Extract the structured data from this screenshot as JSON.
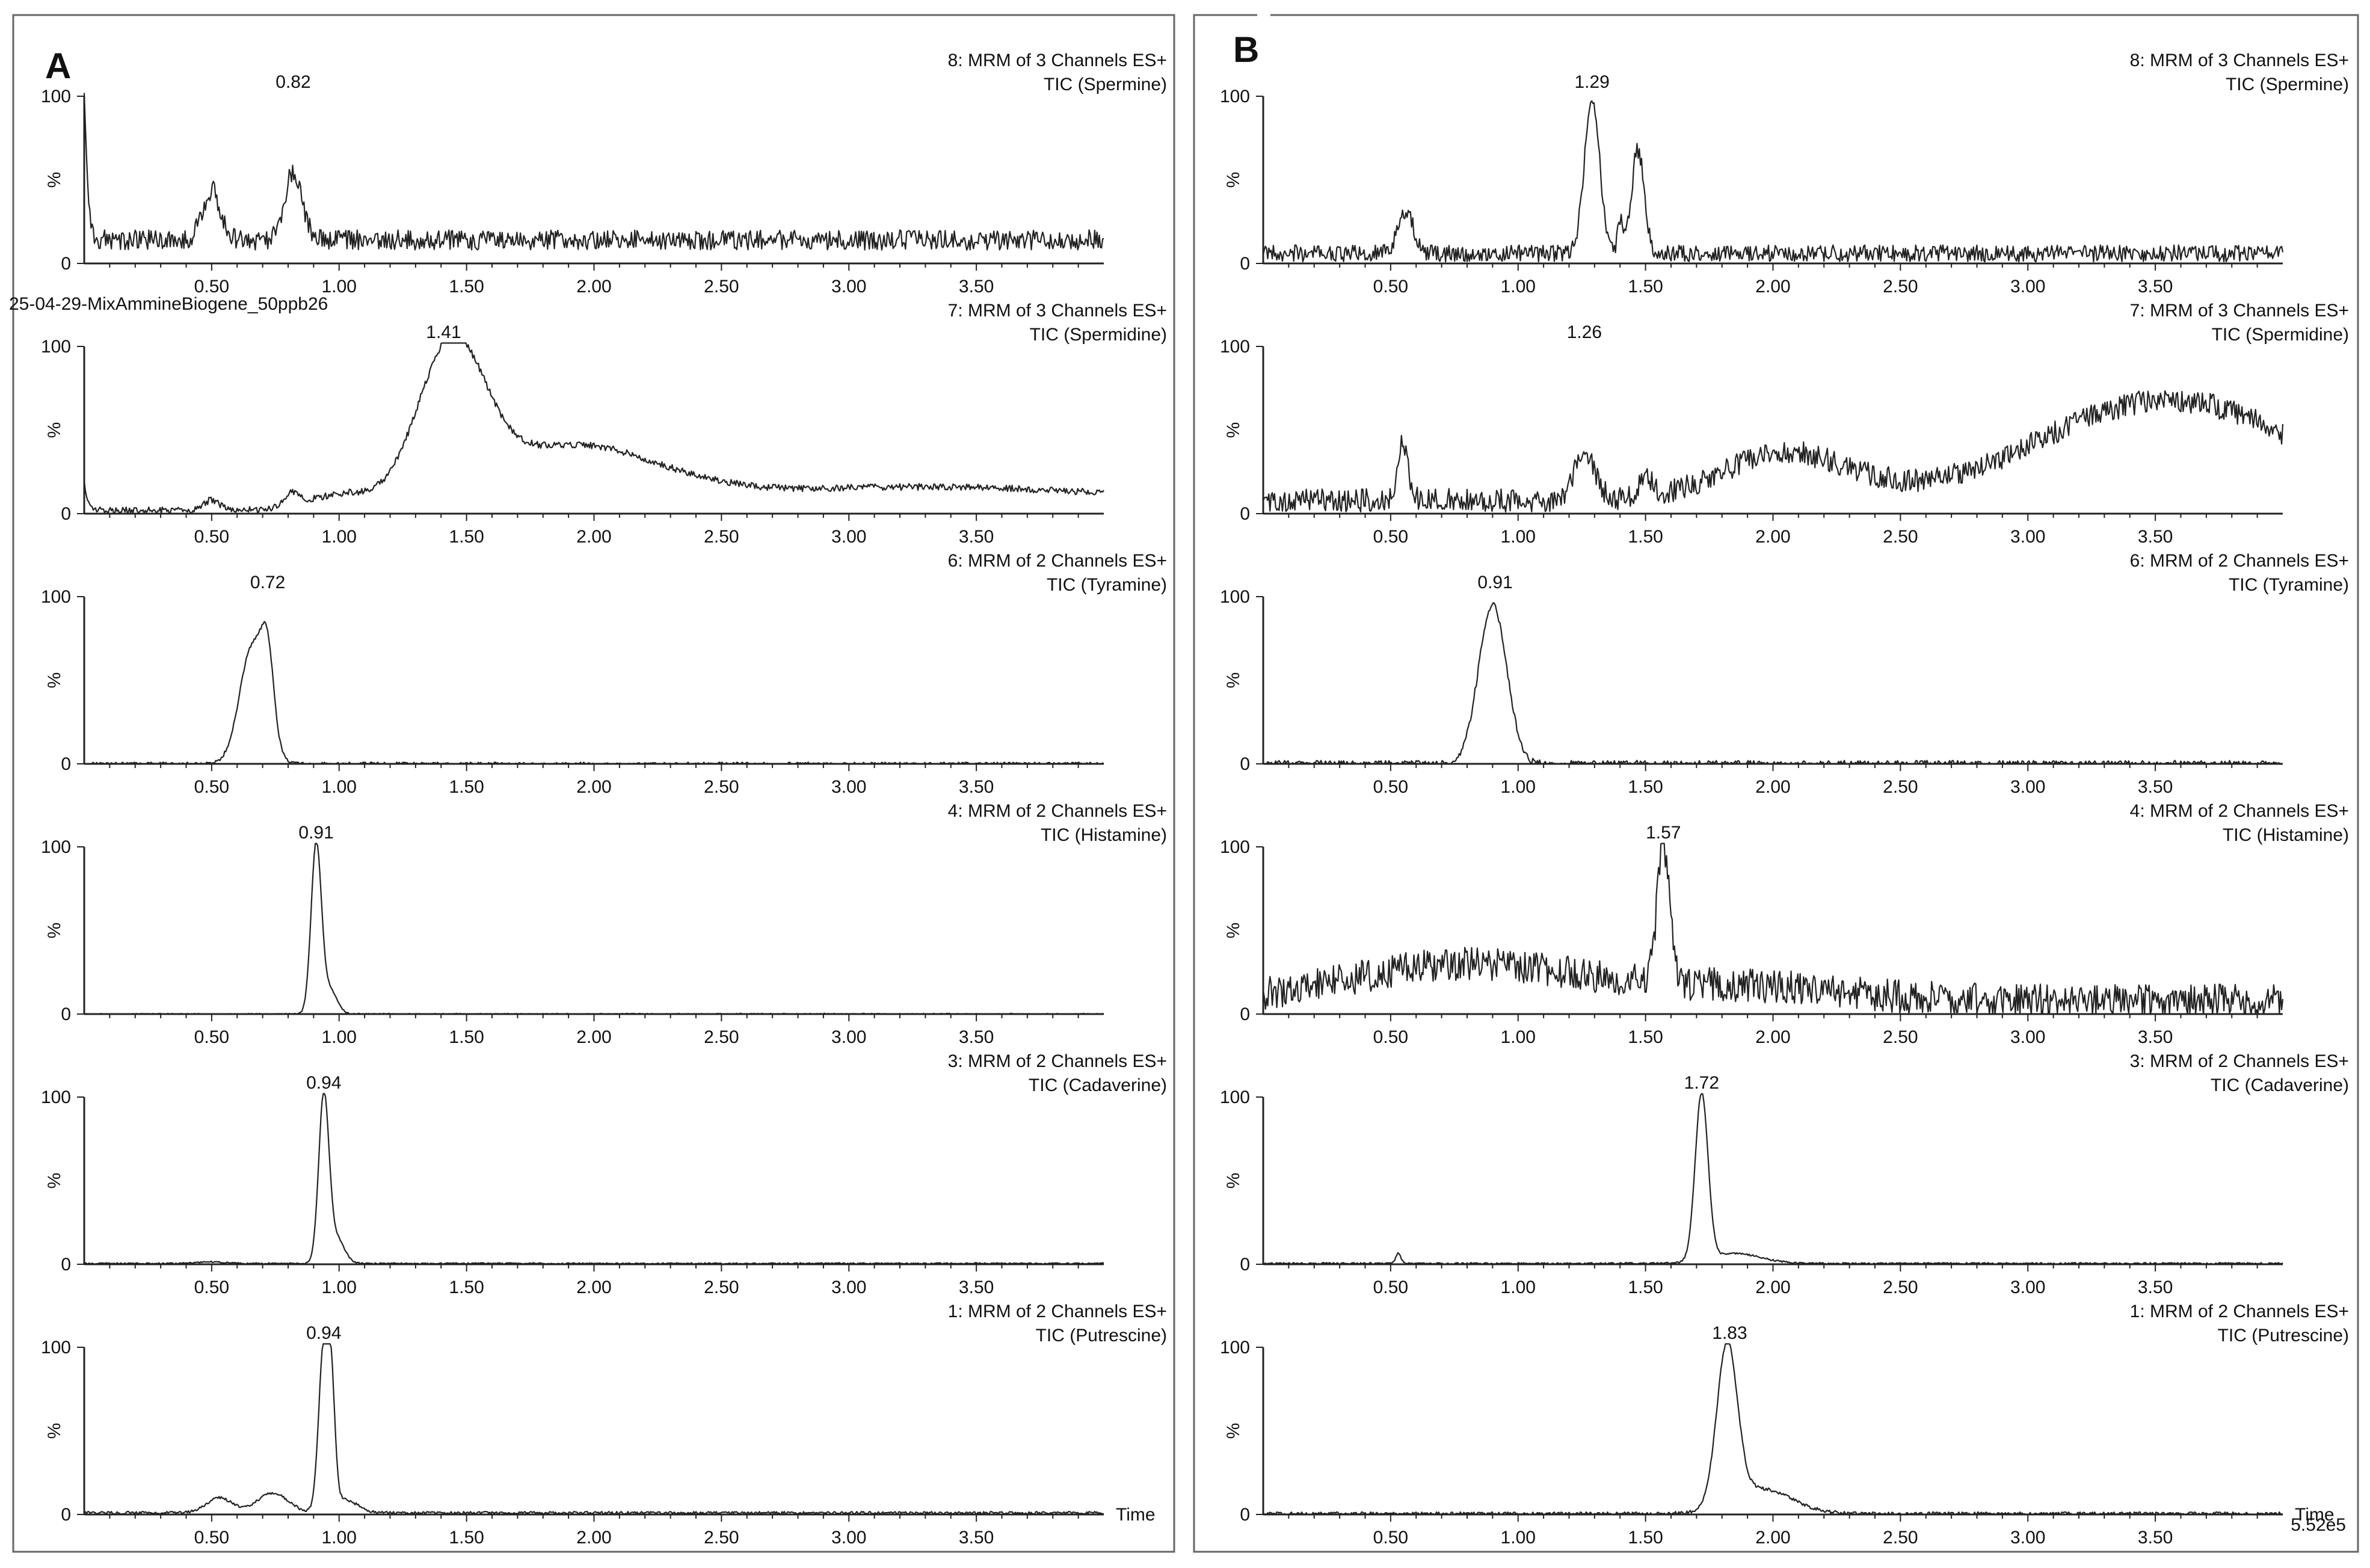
{
  "figure": {
    "x_axis_label": "Time",
    "y_axis_unit": "%",
    "y_ticks": [
      "0",
      "100"
    ],
    "x_ticks": [
      "0.50",
      "1.00",
      "1.50",
      "2.00",
      "2.50",
      "3.00",
      "3.50"
    ],
    "x_range": [
      0.0,
      4.0
    ],
    "colors": {
      "trace": "#222222",
      "frame": "#555555",
      "background": "#ffffff"
    }
  },
  "chart_data": [
    {
      "panel": "A",
      "type": "line",
      "file_label": "25-04-29-MixAmmineBiogene_50ppb26",
      "traces": [
        {
          "header": "8: MRM of 3 Channels ES+",
          "analyte": "TIC (Spermine)",
          "peak_label": "0.82",
          "peak_rt": 0.82,
          "profile": {
            "baseline": 14,
            "noise": 6,
            "start_spike": 100,
            "peaks": [
              [
                0.5,
                30,
                0.035
              ],
              [
                0.82,
                40,
                0.035
              ]
            ]
          }
        },
        {
          "header": "7: MRM of 3 Channels ES+",
          "analyte": "TIC (Spermidine)",
          "peak_label": "1.41",
          "peak_rt": 1.41,
          "profile": {
            "baseline": 2,
            "noise": 2,
            "start_spike": 18,
            "peaks": [
              [
                0.5,
                6,
                0.03
              ],
              [
                0.82,
                8,
                0.03
              ],
              [
                1.0,
                8,
                0.12
              ],
              [
                1.44,
                88,
                0.13
              ],
              [
                1.9,
                35,
                0.35
              ],
              [
                3.3,
                14,
                0.9
              ]
            ]
          }
        },
        {
          "header": "6: MRM of 2 Channels ES+",
          "analyte": "TIC (Tyramine)",
          "peak_label": "0.72",
          "peak_rt": 0.72,
          "profile": {
            "baseline": 0,
            "noise": 1,
            "start_spike": 0,
            "peaks": [
              [
                0.66,
                70,
                0.05
              ],
              [
                0.72,
                45,
                0.025
              ]
            ]
          }
        },
        {
          "header": "4: MRM of 2 Channels ES+",
          "analyte": "TIC (Histamine)",
          "peak_label": "0.91",
          "peak_rt": 0.91,
          "profile": {
            "baseline": 0,
            "noise": 0.4,
            "start_spike": 0,
            "peaks": [
              [
                0.91,
                100,
                0.02
              ],
              [
                0.96,
                15,
                0.03
              ]
            ]
          }
        },
        {
          "header": "3: MRM of 2 Channels ES+",
          "analyte": "TIC (Cadaverine)",
          "peak_label": "0.94",
          "peak_rt": 0.94,
          "profile": {
            "baseline": 0.5,
            "noise": 0.4,
            "start_spike": 0,
            "peaks": [
              [
                0.5,
                1,
                0.05
              ],
              [
                0.94,
                100,
                0.02
              ],
              [
                0.99,
                15,
                0.03
              ]
            ]
          }
        },
        {
          "header": "1: MRM of 2 Channels ES+",
          "analyte": "TIC (Putrescine)",
          "peak_label": "0.94",
          "peak_rt": 0.94,
          "profile": {
            "baseline": 1,
            "noise": 0.8,
            "start_spike": 0,
            "peaks": [
              [
                0.53,
                9,
                0.05
              ],
              [
                0.74,
                12,
                0.06
              ],
              [
                0.94,
                98,
                0.02
              ],
              [
                0.97,
                60,
                0.015
              ],
              [
                1.02,
                8,
                0.05
              ]
            ]
          }
        }
      ]
    },
    {
      "panel": "B",
      "type": "line",
      "intensity_label": "5.52e5",
      "traces": [
        {
          "header": "8: MRM of 3 Channels ES+",
          "analyte": "TIC (Spermine)",
          "peak_label": "1.29",
          "peak_rt": 1.29,
          "profile": {
            "baseline": 6,
            "noise": 5,
            "start_spike": 0,
            "peaks": [
              [
                0.56,
                25,
                0.03
              ],
              [
                1.29,
                92,
                0.03
              ],
              [
                1.47,
                62,
                0.025
              ],
              [
                1.4,
                18,
                0.01
              ]
            ]
          }
        },
        {
          "header": "7: MRM of 3 Channels ES+",
          "analyte": "TIC (Spermidine)",
          "peak_label": "1.26",
          "peak_rt": 1.26,
          "profile": {
            "baseline": 8,
            "noise": 7,
            "start_spike": 0,
            "peaks": [
              [
                0.55,
                35,
                0.02
              ],
              [
                1.26,
                30,
                0.04
              ],
              [
                1.5,
                10,
                0.03
              ],
              [
                2.05,
                28,
                0.25
              ],
              [
                3.55,
                60,
                0.5
              ]
            ]
          }
        },
        {
          "header": "6: MRM of 2 Channels ES+",
          "analyte": "TIC (Tyramine)",
          "peak_label": "0.91",
          "peak_rt": 0.91,
          "profile": {
            "baseline": 0,
            "noise": 2,
            "start_spike": 0,
            "peaks": [
              [
                0.9,
                95,
                0.055
              ]
            ]
          }
        },
        {
          "header": "4: MRM of 2 Channels ES+",
          "analyte": "TIC (Histamine)",
          "peak_label": "1.57",
          "peak_rt": 1.57,
          "profile": {
            "baseline": 8,
            "noise": 10,
            "start_spike": 0,
            "peaks": [
              [
                0.8,
                22,
                0.45
              ],
              [
                1.57,
                80,
                0.025
              ],
              [
                1.9,
                8,
                0.4
              ]
            ]
          }
        },
        {
          "header": "3: MRM of 2 Channels ES+",
          "analyte": "TIC (Cadaverine)",
          "peak_label": "1.72",
          "peak_rt": 1.72,
          "profile": {
            "baseline": 0.5,
            "noise": 0.5,
            "start_spike": 0,
            "peaks": [
              [
                0.53,
                6,
                0.01
              ],
              [
                1.72,
                100,
                0.025
              ],
              [
                1.85,
                6,
                0.1
              ]
            ]
          }
        },
        {
          "header": "1: MRM of 2 Channels ES+",
          "analyte": "TIC (Putrescine)",
          "peak_label": "1.83",
          "peak_rt": 1.83,
          "profile": {
            "baseline": 0.5,
            "noise": 1,
            "start_spike": 0,
            "peaks": [
              [
                1.82,
                95,
                0.04
              ],
              [
                1.95,
                15,
                0.12
              ]
            ]
          }
        }
      ]
    }
  ]
}
